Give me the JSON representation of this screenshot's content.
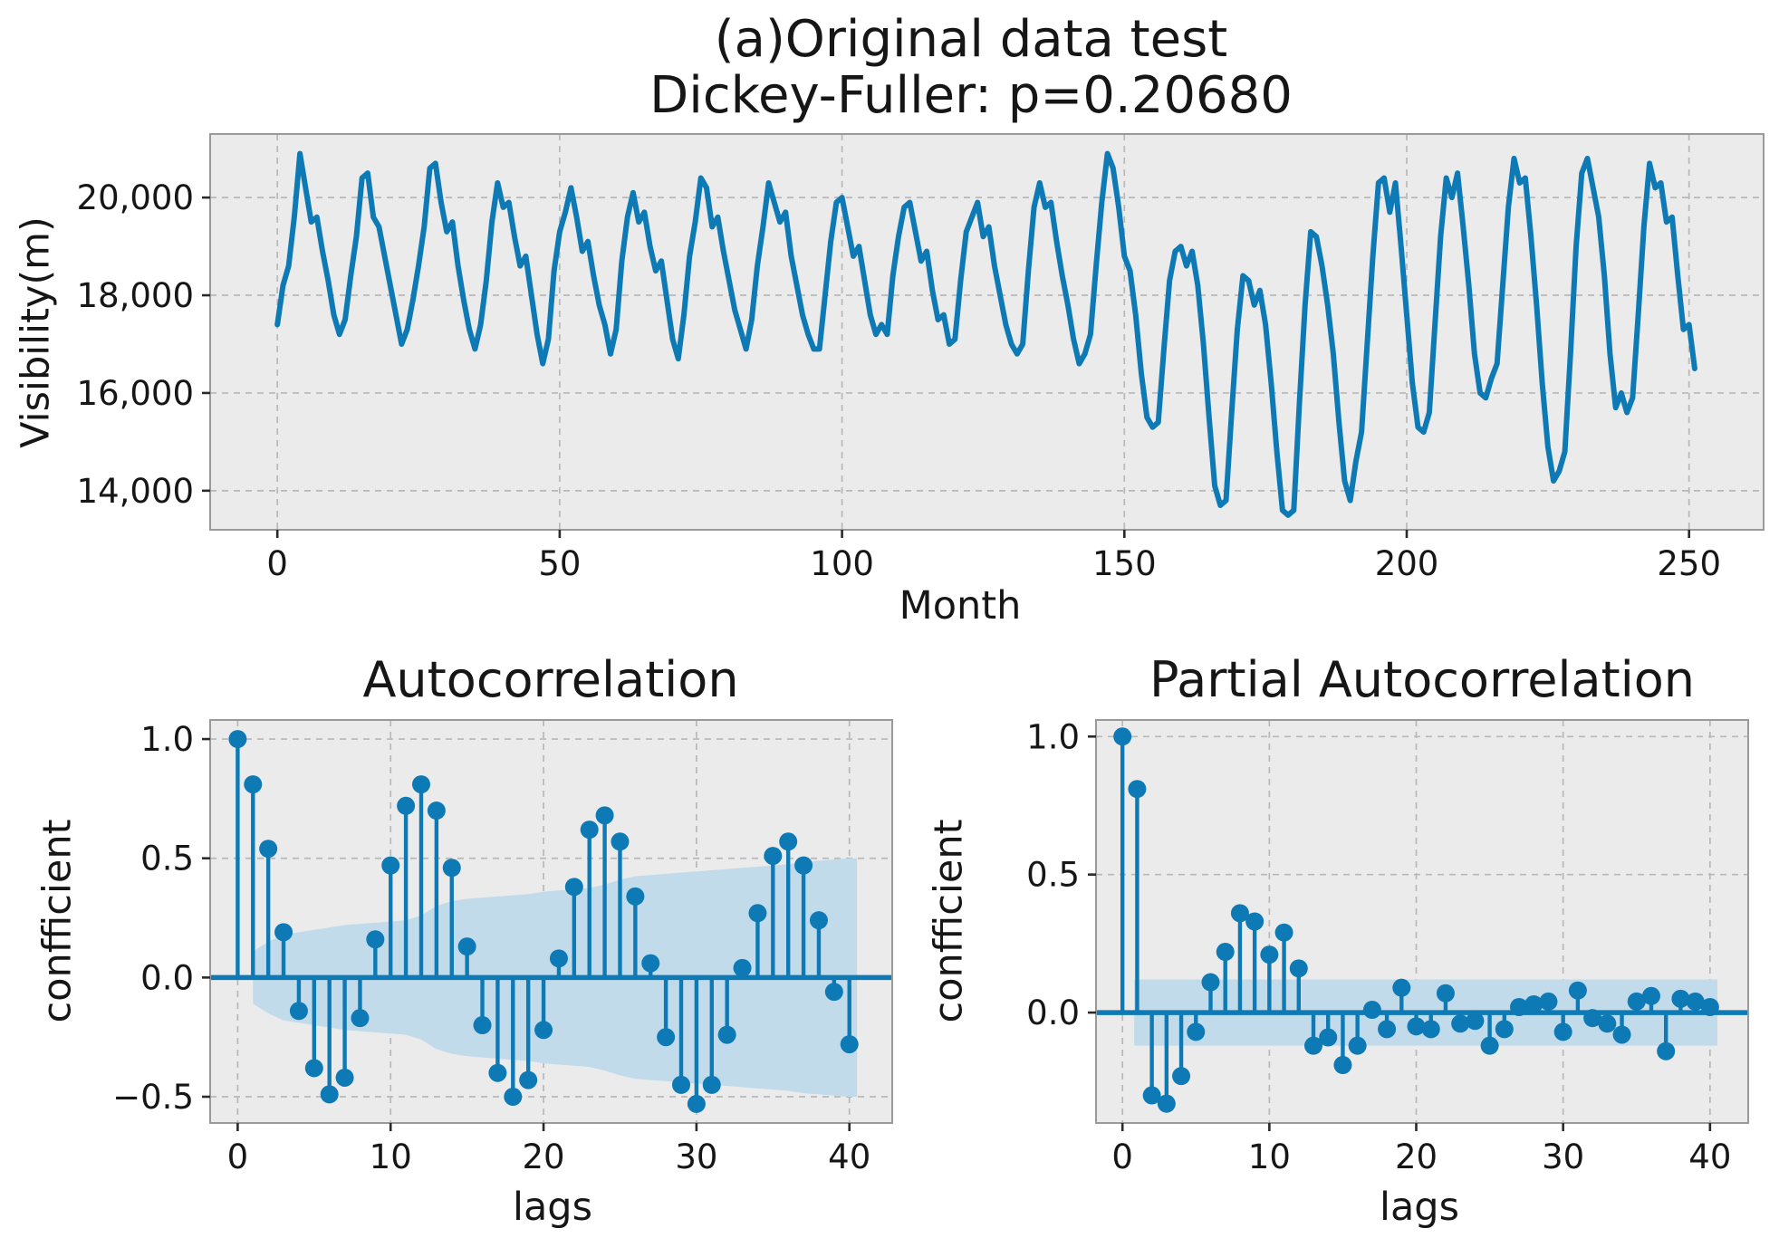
{
  "figure": {
    "background": "#ffffff",
    "panel_background": "#ebebeb",
    "accent": "#0d79b5",
    "band_color": "#c2dbea",
    "grid_color": "#b8b8b8",
    "border_color": "#9a9a9a",
    "tick_color": "#2a2a2a",
    "text_color": "#161616"
  },
  "chart_data": [
    {
      "id": "original",
      "type": "line",
      "title": "(a)Original data test",
      "subtitle": "Dickey-Fuller: p=0.20680",
      "xlabel": "Month",
      "ylabel": "Visibility(m)",
      "legend": null,
      "grid": true,
      "x_ticks": [
        0,
        50,
        100,
        150,
        200,
        250
      ],
      "y_ticks": [
        14000,
        16000,
        18000,
        20000
      ],
      "y_tick_labels": [
        "14,000",
        "16,000",
        "18,000",
        "20,000"
      ],
      "xlim": [
        -11.9,
        263.2
      ],
      "ylim": [
        13200,
        21300
      ],
      "x_start": 0,
      "x_step": 1,
      "values": [
        17400,
        18200,
        18600,
        19600,
        20900,
        20200,
        19500,
        19600,
        18900,
        18300,
        17600,
        17200,
        17500,
        18400,
        19200,
        20400,
        20500,
        19600,
        19400,
        18800,
        18200,
        17600,
        17000,
        17300,
        17900,
        18600,
        19400,
        20600,
        20700,
        19900,
        19300,
        19500,
        18600,
        17900,
        17300,
        16900,
        17400,
        18300,
        19500,
        20300,
        19800,
        19900,
        19200,
        18600,
        18800,
        18000,
        17200,
        16600,
        17100,
        18500,
        19300,
        19700,
        20200,
        19600,
        18900,
        19100,
        18400,
        17800,
        17400,
        16800,
        17300,
        18700,
        19600,
        20100,
        19500,
        19700,
        19000,
        18500,
        18700,
        17900,
        17100,
        16700,
        17600,
        18800,
        19500,
        20400,
        20200,
        19400,
        19600,
        18900,
        18300,
        17700,
        17300,
        16900,
        17500,
        18600,
        19400,
        20300,
        19900,
        19500,
        19700,
        18800,
        18200,
        17600,
        17200,
        16900,
        16900,
        18000,
        19100,
        19900,
        20000,
        19400,
        18800,
        19000,
        18300,
        17600,
        17200,
        17400,
        17200,
        18400,
        19200,
        19800,
        19900,
        19300,
        18700,
        18900,
        18100,
        17500,
        17600,
        17000,
        17100,
        18300,
        19300,
        19600,
        19900,
        19200,
        19400,
        18600,
        18000,
        17400,
        17000,
        16800,
        17000,
        18500,
        19800,
        20300,
        19800,
        19900,
        19100,
        18400,
        17800,
        17100,
        16600,
        16800,
        17200,
        18600,
        19900,
        20900,
        20600,
        19800,
        18800,
        18500,
        17600,
        16400,
        15500,
        15300,
        15400,
        16900,
        18300,
        18900,
        19000,
        18600,
        18900,
        18200,
        17000,
        15500,
        14100,
        13700,
        13800,
        15600,
        17300,
        18400,
        18300,
        17800,
        18100,
        17400,
        16200,
        14800,
        13600,
        13500,
        13600,
        15800,
        17800,
        19300,
        19200,
        18600,
        17800,
        16800,
        15400,
        14200,
        13800,
        14600,
        15200,
        17000,
        18800,
        20300,
        20400,
        19700,
        20300,
        19000,
        17600,
        16200,
        15300,
        15200,
        15600,
        17400,
        19200,
        20400,
        20000,
        20500,
        19400,
        18200,
        16800,
        16000,
        15900,
        16300,
        16600,
        18200,
        19800,
        20800,
        20300,
        20400,
        19200,
        17800,
        16200,
        14900,
        14200,
        14400,
        14800,
        16800,
        19000,
        20500,
        20800,
        20200,
        19600,
        18400,
        16800,
        15700,
        16000,
        15600,
        15900,
        17600,
        19400,
        20700,
        20200,
        20300,
        19500,
        19600,
        18400,
        17300,
        17400,
        16500
      ]
    },
    {
      "id": "acf",
      "type": "stem",
      "title": "Autocorrelation",
      "xlabel": "lags",
      "ylabel": "confficient",
      "grid": true,
      "x_ticks": [
        0,
        10,
        20,
        30,
        40
      ],
      "y_ticks": [
        1.0,
        0.5,
        0.0,
        -0.5
      ],
      "y_tick_labels": [
        "1.0",
        "0.5",
        "0.0",
        "−0.5"
      ],
      "xlim": [
        -1.8,
        42.8
      ],
      "ylim": [
        -0.61,
        1.08
      ],
      "lag_start": 0,
      "values": [
        1.0,
        0.81,
        0.54,
        0.19,
        -0.14,
        -0.38,
        -0.49,
        -0.42,
        -0.17,
        0.16,
        0.47,
        0.72,
        0.81,
        0.7,
        0.46,
        0.13,
        -0.2,
        -0.4,
        -0.5,
        -0.43,
        -0.22,
        0.08,
        0.38,
        0.62,
        0.68,
        0.57,
        0.34,
        0.06,
        -0.25,
        -0.45,
        -0.53,
        -0.45,
        -0.24,
        0.04,
        0.27,
        0.51,
        0.57,
        0.47,
        0.24,
        -0.06,
        -0.28
      ],
      "band_x": [
        1,
        2,
        3,
        4,
        5,
        6,
        7,
        8,
        9,
        10,
        11,
        12,
        13,
        14,
        15,
        16,
        17,
        18,
        19,
        20,
        21,
        22,
        23,
        24,
        25,
        26,
        27,
        28,
        29,
        30,
        31,
        32,
        33,
        34,
        35,
        36,
        37,
        38,
        39,
        40,
        40.5
      ],
      "band_upper": [
        0.11,
        0.15,
        0.18,
        0.19,
        0.2,
        0.21,
        0.22,
        0.225,
        0.23,
        0.235,
        0.24,
        0.26,
        0.3,
        0.32,
        0.33,
        0.335,
        0.34,
        0.345,
        0.35,
        0.36,
        0.365,
        0.37,
        0.375,
        0.39,
        0.41,
        0.425,
        0.43,
        0.435,
        0.44,
        0.445,
        0.45,
        0.455,
        0.46,
        0.465,
        0.47,
        0.475,
        0.485,
        0.49,
        0.495,
        0.5,
        0.5
      ]
    },
    {
      "id": "pacf",
      "type": "stem",
      "title": "Partial Autocorrelation",
      "xlabel": "lags",
      "ylabel": "confficient",
      "grid": true,
      "x_ticks": [
        0,
        10,
        20,
        30,
        40
      ],
      "y_ticks": [
        1.0,
        0.5,
        0.0
      ],
      "y_tick_labels": [
        "1.0",
        "0.5",
        "0.0"
      ],
      "xlim": [
        -1.8,
        42.6
      ],
      "ylim": [
        -0.4,
        1.06
      ],
      "lag_start": 0,
      "values": [
        1.0,
        0.81,
        -0.3,
        -0.33,
        -0.23,
        -0.07,
        0.11,
        0.22,
        0.36,
        0.33,
        0.21,
        0.29,
        0.16,
        -0.12,
        -0.09,
        -0.19,
        -0.12,
        0.01,
        -0.06,
        0.09,
        -0.05,
        -0.06,
        0.07,
        -0.04,
        -0.03,
        -0.12,
        -0.06,
        0.02,
        0.03,
        0.04,
        -0.07,
        0.08,
        -0.02,
        -0.04,
        -0.08,
        0.04,
        0.06,
        -0.14,
        0.05,
        0.04,
        0.02
      ],
      "band_x": [
        0.8,
        40.5
      ],
      "band_upper": [
        0.12,
        0.12
      ]
    }
  ]
}
